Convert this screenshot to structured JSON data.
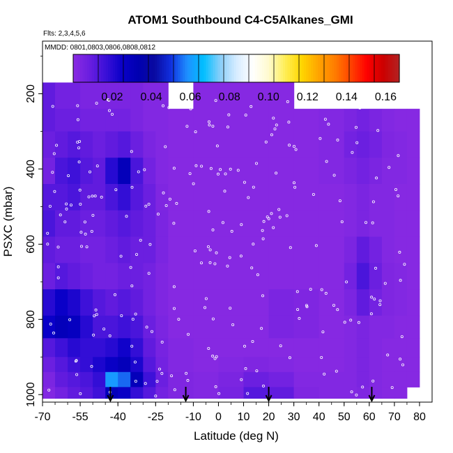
{
  "chart_data": {
    "type": "heatmap",
    "title": "ATOM1 Southbound C4-C5Alkanes_GMI",
    "subtitle": "Flts: 2,3,4,5,6",
    "annotation": "MMDD: 0801,0803,0806,0808,0812",
    "xlabel": "Latitude (deg N)",
    "ylabel": "PSXC (mbar)",
    "xlim": [
      -70,
      85
    ],
    "ylim": [
      1020,
      60
    ],
    "y_reversed": true,
    "x_ticks": [
      -70,
      -55,
      -40,
      -25,
      -10,
      0,
      10,
      20,
      30,
      40,
      50,
      60,
      70,
      80
    ],
    "x_tick_labels": [
      "-70",
      "-55",
      "-40",
      "-25",
      "-10",
      "0",
      "10",
      "20",
      "30",
      "40",
      "50",
      "60",
      "70",
      "80"
    ],
    "y_ticks": [
      200,
      400,
      600,
      800,
      1000
    ],
    "y_tick_labels": [
      "200",
      "400",
      "600",
      "800",
      "1000"
    ],
    "colorbar": {
      "min": 0.0,
      "max": 0.167,
      "ticks": [
        0.02,
        0.04,
        0.06,
        0.08,
        0.1,
        0.12,
        0.14,
        0.16
      ],
      "tick_labels": [
        "0.02",
        "0.04",
        "0.06",
        "0.08",
        "0.10",
        "0.12",
        "0.14",
        "0.16"
      ],
      "colors": [
        "#8a2be2",
        "#6a1ee0",
        "#3a10d8",
        "#0a00c8",
        "#0000b0",
        "#0a0aa0",
        "#1030e0",
        "#1e90ff",
        "#00bfff",
        "#87cefa",
        "#d6ecff",
        "#ffffff",
        "#fffacd",
        "#ffee55",
        "#ffd700",
        "#ffa500",
        "#ff7f00",
        "#ff4500",
        "#ff0000",
        "#cc0000",
        "#b22222"
      ],
      "placement": "top"
    },
    "grid": false,
    "arrows_at_lat": [
      -43,
      -13,
      20,
      61
    ],
    "columns": [
      {
        "lat": [
          -70,
          -65
        ],
        "values": [
          0.01,
          0.01,
          0.008,
          0.006,
          0.012,
          0.014,
          0.01,
          0.008,
          0.02,
          0.025,
          0.012,
          0.008,
          0.004,
          0.002
        ]
      },
      {
        "lat": [
          -65,
          -60
        ],
        "values": [
          0.006,
          0.008,
          0.01,
          0.014,
          0.012,
          0.01,
          0.008,
          0.012,
          0.025,
          0.03,
          0.016,
          0.012,
          0.01,
          0.006
        ]
      },
      {
        "lat": [
          -60,
          -55
        ],
        "values": [
          0.006,
          0.008,
          0.012,
          0.016,
          0.014,
          0.01,
          0.008,
          0.01,
          0.022,
          0.028,
          0.02,
          0.016,
          0.012,
          0.01
        ]
      },
      {
        "lat": [
          -55,
          -50
        ],
        "values": [
          0.004,
          0.006,
          0.01,
          0.012,
          0.01,
          0.008,
          0.006,
          0.008,
          0.016,
          0.02,
          0.018,
          0.018,
          0.014,
          0.012
        ]
      },
      {
        "lat": [
          -50,
          -45
        ],
        "values": [
          0.004,
          0.006,
          0.008,
          0.01,
          0.01,
          0.008,
          0.006,
          0.006,
          0.012,
          0.014,
          0.018,
          0.022,
          0.018,
          0.016
        ]
      },
      {
        "lat": [
          -45,
          -40
        ],
        "values": [
          0.004,
          0.006,
          0.01,
          0.02,
          0.014,
          0.01,
          0.008,
          0.006,
          0.01,
          0.014,
          0.02,
          0.026,
          0.06,
          0.03
        ]
      },
      {
        "lat": [
          -40,
          -35
        ],
        "values": [
          0.004,
          0.006,
          0.012,
          0.03,
          0.018,
          0.012,
          0.01,
          0.008,
          0.012,
          0.016,
          0.024,
          0.03,
          0.055,
          0.026
        ]
      },
      {
        "lat": [
          -35,
          -30
        ],
        "values": [
          0.004,
          0.004,
          0.008,
          0.014,
          0.012,
          0.01,
          0.008,
          0.008,
          0.01,
          0.014,
          0.018,
          0.022,
          0.03,
          0.018
        ]
      },
      {
        "lat": [
          -30,
          -25
        ],
        "values": [
          0.002,
          0.002,
          0.004,
          0.006,
          0.008,
          0.008,
          0.008,
          0.006,
          0.006,
          0.008,
          0.01,
          0.012,
          0.016,
          0.012
        ]
      },
      {
        "lat": [
          -25,
          -20
        ],
        "values": [
          0.002,
          0.002,
          0.002,
          0.002,
          0.003,
          0.004,
          0.004,
          0.003,
          0.003,
          0.004,
          0.005,
          0.006,
          0.008,
          0.006
        ]
      },
      {
        "lat": [
          -20,
          -10
        ],
        "values": [
          null,
          0.001,
          0.001,
          0.001,
          0.001,
          0.001,
          0.001,
          0.001,
          0.001,
          0.001,
          0.002,
          0.002,
          0.003,
          0.003
        ]
      },
      {
        "lat": [
          -10,
          0
        ],
        "values": [
          0.001,
          0.001,
          0.001,
          0.001,
          0.001,
          0.001,
          0.001,
          0.001,
          0.001,
          0.001,
          0.001,
          0.001,
          0.002,
          0.002
        ]
      },
      {
        "lat": [
          0,
          10
        ],
        "values": [
          0.001,
          0.001,
          0.001,
          0.001,
          0.001,
          0.001,
          0.001,
          0.001,
          0.001,
          0.001,
          0.001,
          0.002,
          0.004,
          0.005
        ]
      },
      {
        "lat": [
          10,
          20
        ],
        "values": [
          0.001,
          0.001,
          0.001,
          0.001,
          0.001,
          0.001,
          0.001,
          0.001,
          0.001,
          0.001,
          0.001,
          0.003,
          0.008,
          0.012
        ]
      },
      {
        "lat": [
          20,
          30
        ],
        "values": [
          0.001,
          0.001,
          0.001,
          0.001,
          0.001,
          0.001,
          0.001,
          0.001,
          0.004,
          0.004,
          0.001,
          0.002,
          0.006,
          0.01
        ]
      },
      {
        "lat": [
          30,
          40
        ],
        "values": [
          null,
          0.001,
          0.001,
          0.001,
          0.001,
          0.001,
          0.001,
          0.001,
          0.003,
          0.003,
          0.001,
          0.001,
          0.002,
          0.003
        ]
      },
      {
        "lat": [
          40,
          50
        ],
        "values": [
          null,
          0.002,
          0.002,
          0.002,
          0.001,
          0.001,
          0.001,
          0.001,
          0.001,
          0.001,
          0.001,
          0.001,
          0.002,
          0.002
        ]
      },
      {
        "lat": [
          50,
          55
        ],
        "values": [
          null,
          0.004,
          0.006,
          0.004,
          0.002,
          0.002,
          0.004,
          0.006,
          0.004,
          0.002,
          0.002,
          0.002,
          0.002,
          0.002
        ]
      },
      {
        "lat": [
          55,
          60
        ],
        "values": [
          null,
          0.006,
          0.008,
          0.006,
          0.004,
          0.004,
          0.01,
          0.014,
          0.01,
          0.004,
          0.004,
          0.004,
          0.004,
          0.003
        ]
      },
      {
        "lat": [
          60,
          65
        ],
        "values": [
          null,
          0.004,
          0.006,
          0.004,
          0.002,
          0.002,
          0.006,
          0.008,
          0.006,
          0.002,
          0.002,
          0.002,
          0.002,
          0.002
        ]
      },
      {
        "lat": [
          65,
          70
        ],
        "values": [
          null,
          0.002,
          0.003,
          0.002,
          0.002,
          0.002,
          0.002,
          0.003,
          0.003,
          0.002,
          0.001,
          0.001,
          0.001,
          0.001
        ]
      },
      {
        "lat": [
          70,
          75
        ],
        "values": [
          null,
          0.001,
          0.002,
          0.002,
          0.001,
          0.001,
          0.001,
          0.002,
          0.002,
          0.001,
          0.001,
          0.001,
          0.001,
          0.001
        ]
      },
      {
        "lat": [
          75,
          80
        ],
        "values": [
          null,
          0.001,
          0.001,
          0.001,
          0.001,
          0.001,
          0.001,
          0.001,
          0.001,
          0.001,
          0.001,
          0.001,
          0.001,
          null
        ]
      }
    ],
    "pressure_rows": [
      [
        170,
        240
      ],
      [
        240,
        300
      ],
      [
        300,
        370
      ],
      [
        370,
        440
      ],
      [
        440,
        510
      ],
      [
        510,
        580
      ],
      [
        580,
        650
      ],
      [
        650,
        720
      ],
      [
        720,
        790
      ],
      [
        790,
        850
      ],
      [
        850,
        900
      ],
      [
        900,
        940
      ],
      [
        940,
        980
      ],
      [
        980,
        1010
      ]
    ]
  }
}
